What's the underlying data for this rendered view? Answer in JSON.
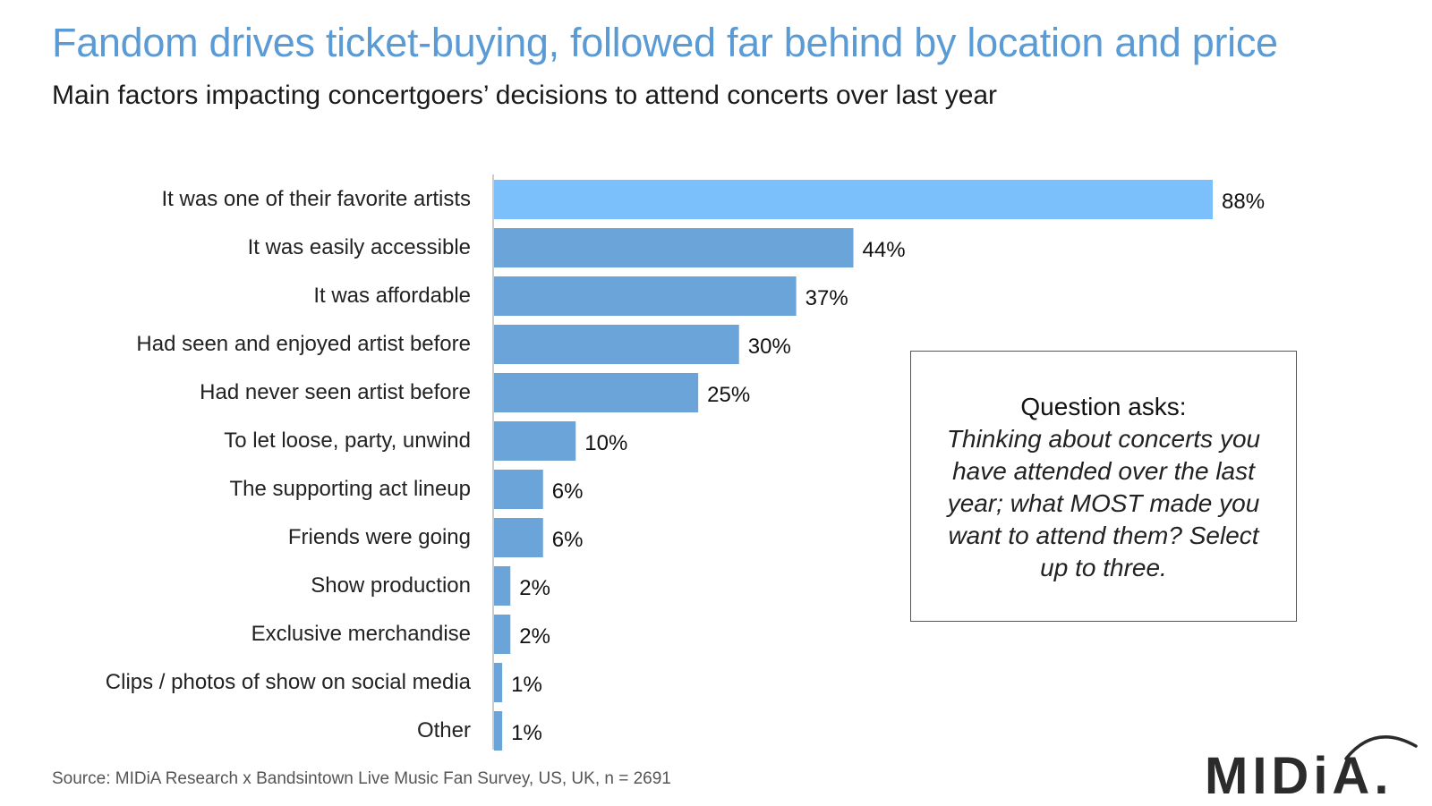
{
  "title": "Fandom drives ticket-buying, followed far behind by location and price",
  "subtitle": "Main factors impacting concertgoers’ decisions to attend concerts over last year",
  "question": {
    "heading": "Question asks:",
    "text": "Thinking about concerts you have attended over the last year; what MOST made you want to attend them? Select up to three."
  },
  "source": "Source: MIDiA Research x Bandsintown Live Music Fan Survey, US, UK, n = 2691",
  "logo": {
    "text": "MIDiA."
  },
  "colors": {
    "highlight": "#7cc0fb",
    "bar": "#6aa4d8",
    "title": "#5b9bd5"
  },
  "chart_data": {
    "type": "bar",
    "orientation": "horizontal",
    "categories": [
      "It was one of their favorite artists",
      "It was easily accessible",
      "It was affordable",
      "Had seen and enjoyed artist before",
      "Had never seen artist before",
      "To let loose, party, unwind",
      "The supporting act lineup",
      "Friends were going",
      "Show production",
      "Exclusive merchandise",
      "Clips / photos of show on social media",
      "Other"
    ],
    "values": [
      88,
      44,
      37,
      30,
      25,
      10,
      6,
      6,
      2,
      2,
      1,
      1
    ],
    "value_labels": [
      "88%",
      "44%",
      "37%",
      "30%",
      "25%",
      "10%",
      "6%",
      "6%",
      "2%",
      "2%",
      "1%",
      "1%"
    ],
    "xlim": [
      0,
      100
    ],
    "unit": "%",
    "highlight_index": 0,
    "grid": false,
    "legend": "none"
  }
}
